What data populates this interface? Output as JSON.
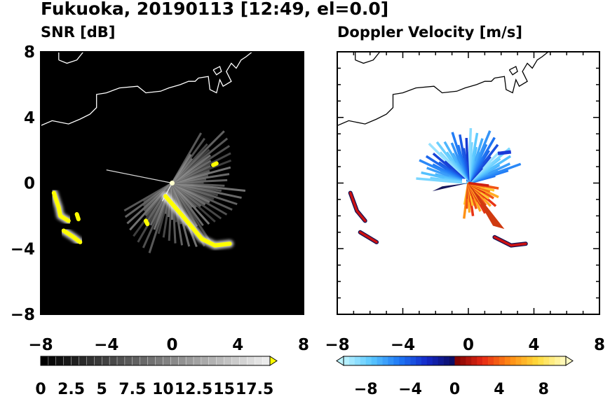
{
  "figure": {
    "title": "Fukuoka, 20190113 [12:49, el=0.0]"
  },
  "chart_data": [
    {
      "type": "heatmap",
      "title": "SNR [dB]",
      "xlim": [
        -8,
        8
      ],
      "ylim": [
        -8,
        8
      ],
      "x_ticks": [
        -8,
        -4,
        0,
        4,
        8
      ],
      "y_ticks": [
        8,
        4,
        0,
        -4,
        -8
      ],
      "x_tick_labels": [
        "−8",
        "−4",
        "0",
        "4",
        "8"
      ],
      "y_tick_labels": [
        "8",
        "4",
        "0",
        "−4",
        "−8"
      ],
      "background_color": "#000000",
      "colorbar": {
        "min": 0,
        "max": 18.75,
        "step": 0.625,
        "labels": [
          "0",
          "2.5",
          "5",
          "7.5",
          "10",
          "12.5",
          "15",
          "17.5"
        ],
        "label_values": [
          0,
          2.5,
          5,
          7.5,
          10,
          12.5,
          15,
          17.5
        ],
        "scale": "grayscale to white, yellow over-range arrow",
        "over_color": "#ffff00"
      },
      "echo_regions": [
        {
          "kind": "clutter-sector",
          "center": [
            0,
            0
          ],
          "radius_km": 3.2,
          "az_start_deg": -70,
          "az_end_deg": 80,
          "color": "#8a8a8a"
        },
        {
          "kind": "strong-echo",
          "points": [
            [
              -7.2,
              -0.6
            ],
            [
              -6.9,
              -1.5
            ],
            [
              -6.8,
              -2.0
            ],
            [
              -6.3,
              -2.3
            ]
          ],
          "color": "#ffff00"
        },
        {
          "kind": "strong-echo",
          "points": [
            [
              -6.6,
              -2.9
            ],
            [
              -6.0,
              -3.3
            ],
            [
              -5.6,
              -3.6
            ]
          ],
          "color": "#ffff00"
        },
        {
          "kind": "strong-echo",
          "points": [
            [
              -5.8,
              -1.9
            ],
            [
              -5.7,
              -2.2
            ]
          ],
          "color": "#ffff00"
        },
        {
          "kind": "strong-echo",
          "points": [
            [
              -0.4,
              -0.8
            ],
            [
              0.8,
              -2.2
            ],
            [
              1.8,
              -3.4
            ],
            [
              2.6,
              -3.8
            ],
            [
              3.5,
              -3.7
            ]
          ],
          "color": "#ffff00"
        },
        {
          "kind": "strong-echo",
          "points": [
            [
              -1.6,
              -2.3
            ],
            [
              -1.5,
              -2.5
            ]
          ],
          "color": "#ffff00"
        },
        {
          "kind": "strong-echo",
          "points": [
            [
              2.5,
              1.1
            ],
            [
              2.7,
              1.2
            ]
          ],
          "color": "#ffff00"
        }
      ]
    },
    {
      "type": "heatmap",
      "title": "Doppler Velocity [m/s]",
      "xlim": [
        -8,
        8
      ],
      "ylim": [
        -8,
        8
      ],
      "x_ticks": [
        -8,
        -4,
        0,
        4,
        8
      ],
      "y_ticks": [
        8,
        4,
        0,
        -4,
        -8
      ],
      "x_tick_labels": [
        "−8",
        "−4",
        "0",
        "4",
        "8"
      ],
      "y_tick_labels": [],
      "background_color": "#ffffff",
      "colorbar": {
        "min": -10,
        "max": 10,
        "step": 0.5,
        "labels": [
          "−8",
          "−4",
          "0",
          "4",
          "8"
        ],
        "label_values": [
          -8,
          -4,
          0,
          4,
          8
        ],
        "scale": "light cyan to blue to dark navy, dark red to orange to light yellow",
        "under_color": "#bff4ff",
        "over_color": "#fffbc4"
      },
      "echo_regions": [
        {
          "kind": "approaching",
          "sector": [
            -60,
            15
          ],
          "radius_km": 3.0,
          "color": "#1c44e6"
        },
        {
          "kind": "receding",
          "sector": [
            100,
            170
          ],
          "radius_km": 2.2,
          "color": "#ff8a1c"
        },
        {
          "kind": "mixed",
          "points": [
            [
              -7.2,
              -0.6
            ],
            [
              -6.8,
              -1.7
            ],
            [
              -6.3,
              -2.3
            ]
          ],
          "color": "#cc1111"
        },
        {
          "kind": "mixed",
          "points": [
            [
              -6.6,
              -3.0
            ],
            [
              -5.6,
              -3.6
            ]
          ],
          "color": "#cc1111"
        },
        {
          "kind": "mixed",
          "points": [
            [
              1.6,
              -3.3
            ],
            [
              2.6,
              -3.8
            ],
            [
              3.5,
              -3.7
            ]
          ],
          "color": "#cc1111"
        }
      ]
    }
  ],
  "map": {
    "coastline_color": "#ffffff",
    "coastline_color_light": "#000000"
  }
}
